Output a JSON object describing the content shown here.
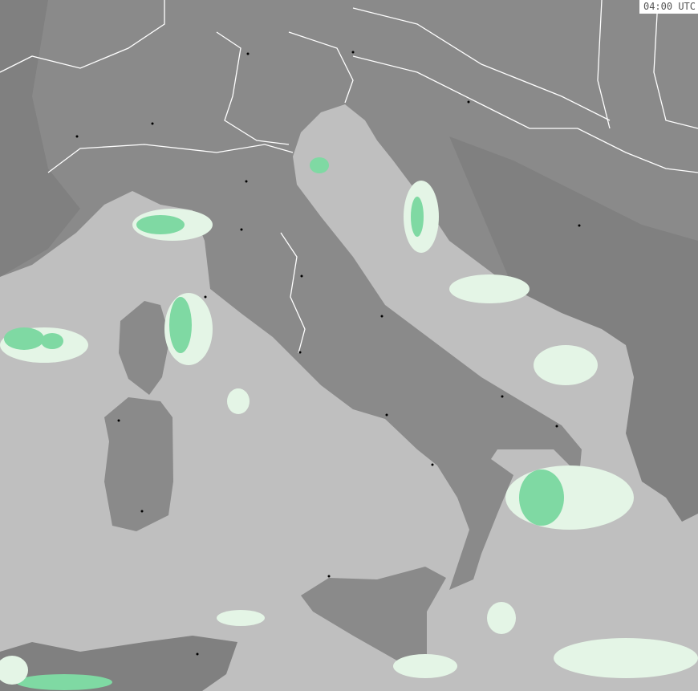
{
  "map": {
    "time_label": "04:00 UTC",
    "colors": {
      "sea": "#bfbfbf",
      "land": "#8a8a8a",
      "land_outer": "#808080",
      "border": "#ffffff",
      "precip_light": "#e4f5e6",
      "precip_moderate": "#7fd9a3"
    }
  }
}
